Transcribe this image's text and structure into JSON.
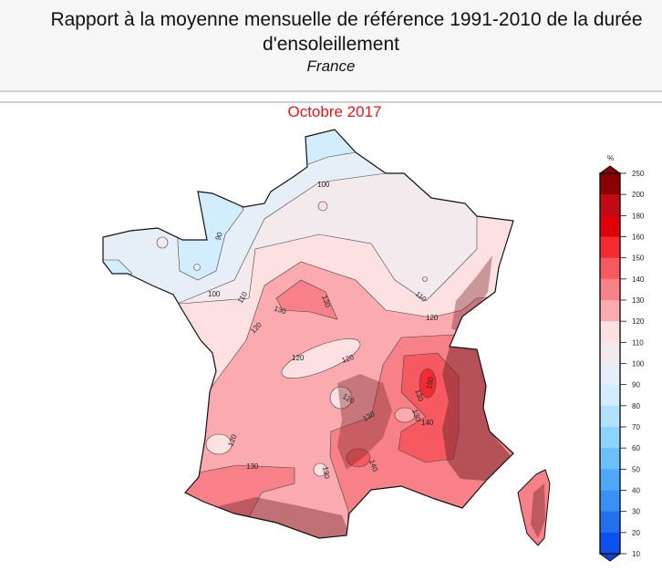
{
  "header": {
    "title_line1": "Rapport à la moyenne mensuelle de référence 1991-2010 de la durée",
    "title_line2": "d'ensoleillement",
    "region": "France"
  },
  "period": "Octobre 2017",
  "legend": {
    "unit": "%",
    "ticks": [
      "250",
      "200",
      "180",
      "160",
      "150",
      "140",
      "130",
      "120",
      "110",
      "100",
      "90",
      "80",
      "70",
      "60",
      "50",
      "40",
      "30",
      "20",
      "10"
    ],
    "colors": [
      "#8b0000",
      "#c00a14",
      "#e00008",
      "#f52a30",
      "#f65a60",
      "#f88088",
      "#fbaab0",
      "#fde0e2",
      "#f3eaee",
      "#e6eef7",
      "#d2eefe",
      "#b0e2fe",
      "#8cd4fe",
      "#6ac0fc",
      "#4ea8f8",
      "#3890f4",
      "#2070f0",
      "#0c50f0"
    ]
  },
  "map": {
    "contour_labels": [
      "90",
      "100",
      "100",
      "110",
      "110",
      "120",
      "120",
      "120",
      "120",
      "120",
      "120",
      "130",
      "130",
      "130",
      "130",
      "130",
      "140",
      "140",
      "150",
      "130",
      "130"
    ]
  }
}
